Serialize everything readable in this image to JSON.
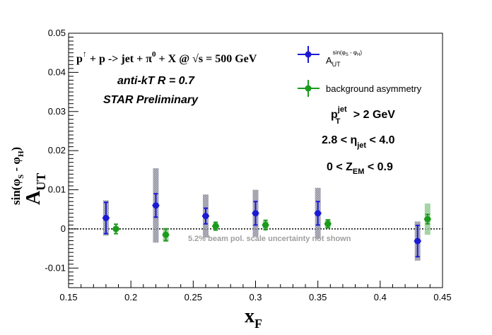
{
  "chart_data": {
    "type": "scatter",
    "title": "",
    "xlabel": "x",
    "xlabel_sub": "F",
    "ylabel": "A",
    "ylabel_sub": "UT",
    "ylabel_sup": "sin(φ_S - φ_H)",
    "xlim": [
      0.15,
      0.45
    ],
    "ylim": [
      -0.015,
      0.05
    ],
    "xticks": [
      "0.15",
      "0.2",
      "0.25",
      "0.3",
      "0.35",
      "0.4",
      "0.45"
    ],
    "yticks": [
      "-0.01",
      "0",
      "0.01",
      "0.02",
      "0.03",
      "0.04",
      "0.05"
    ],
    "zero_line": "dotted",
    "legend_position": "top-right",
    "series": [
      {
        "name": "A_UT^{sin(φ_S - φ_H)}",
        "color": "#1a1ad6",
        "marker": "circle",
        "x": [
          0.18,
          0.22,
          0.26,
          0.3,
          0.35,
          0.43
        ],
        "y": [
          0.0028,
          0.006,
          0.0033,
          0.004,
          0.004,
          -0.0031
        ],
        "yerr": [
          0.004,
          0.003,
          0.002,
          0.003,
          0.003,
          0.004
        ],
        "sys": [
          0.0045,
          0.0095,
          0.0055,
          0.006,
          0.0065,
          0.005
        ]
      },
      {
        "name": "background asymmetry",
        "color": "#1b9a1b",
        "marker": "circle",
        "x": [
          0.188,
          0.228,
          0.268,
          0.308,
          0.358,
          0.438
        ],
        "y": [
          0.0,
          -0.0015,
          0.0007,
          0.001,
          0.0013,
          0.0025
        ],
        "yerr": [
          0.0012,
          0.0015,
          0.001,
          0.0012,
          0.001,
          0.0012
        ],
        "sys": [
          0.0006,
          0.0018,
          0.0008,
          0.001,
          0.0012,
          0.004
        ]
      }
    ],
    "annotations": {
      "process": "p↑ + p -> jet +  π⁰ + X @  √s = 500 GeV",
      "algorithm": "anti-kT R = 0.7",
      "preliminary": "STAR Preliminary",
      "cut_pt": "p_T^jet > 2 GeV",
      "cut_eta": "2.8 < η_jet < 4.0",
      "cut_zem": "0 < Z_EM < 0.9",
      "uncertainty_note": "5.2% beam pol. scale uncertainty not shown"
    }
  },
  "colors": {
    "preliminary": "#e01010",
    "note": "#a0a0a0",
    "sys_blue": "#8c8c9c",
    "sys_green": "#8cc78c"
  }
}
